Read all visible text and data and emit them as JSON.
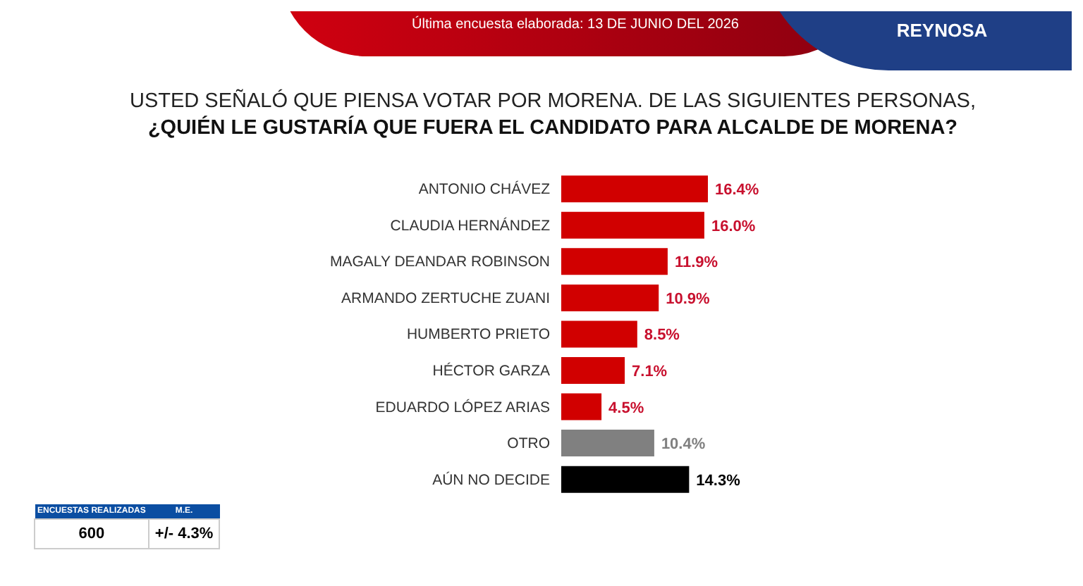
{
  "chart_data": {
    "type": "bar",
    "orientation": "horizontal",
    "title": "USTED SEÑALÓ QUE PIENSA VOTAR POR MORENA. DE LAS SIGUIENTES PERSONAS,",
    "subtitle": "¿QUIÉN LE GUSTARÍA QUE FUERA EL CANDIDATO PARA ALCALDE DE MORENA?",
    "categories": [
      "ANTONIO CHÁVEZ",
      "CLAUDIA HERNÁNDEZ",
      "MAGALY DEANDAR ROBINSON",
      "ARMANDO ZERTUCHE ZUANI",
      "HUMBERTO PRIETO",
      "HÉCTOR GARZA",
      "EDUARDO LÓPEZ ARIAS",
      "OTRO",
      "AÚN NO DECIDE"
    ],
    "values": [
      16.4,
      16.0,
      11.9,
      10.9,
      8.5,
      7.1,
      4.5,
      10.4,
      14.3
    ],
    "value_labels": [
      "16.4%",
      "16.0%",
      "11.9%",
      "10.9%",
      "8.5%",
      "7.1%",
      "4.5%",
      "10.4%",
      "14.3%"
    ],
    "colors": [
      "#d10000",
      "#d10000",
      "#d10000",
      "#d10000",
      "#d10000",
      "#d10000",
      "#d10000",
      "#808080",
      "#000000"
    ],
    "annotations": [
      "Última encuesta elaborada: 13 DE JUNIO DEL 2026",
      "REYNOSA",
      "ENCUESTAS REALIZADAS",
      "M.E.",
      "600",
      "+/- 4.3%"
    ]
  }
}
